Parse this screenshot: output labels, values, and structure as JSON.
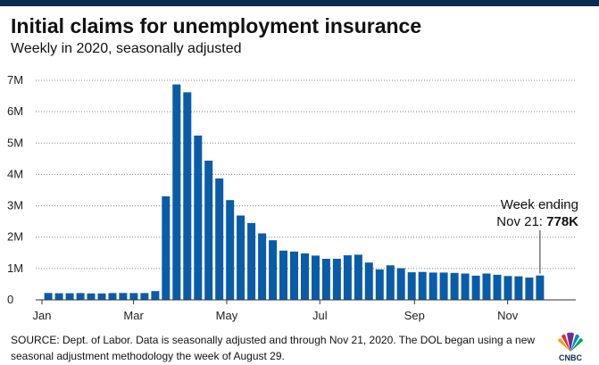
{
  "colors": {
    "bar": "#0a5ca8",
    "header_bar": "#0d2b52",
    "axis": "#333333"
  },
  "chart_data": {
    "type": "bar",
    "title": "Initial claims for unemployment insurance",
    "subtitle": "Weekly in 2020, seasonally adjusted",
    "ylim": [
      0,
      7000000
    ],
    "y_ticks": [
      {
        "value": 0,
        "label": "0"
      },
      {
        "value": 1000000,
        "label": "1M"
      },
      {
        "value": 2000000,
        "label": "2M"
      },
      {
        "value": 3000000,
        "label": "3M"
      },
      {
        "value": 4000000,
        "label": "4M"
      },
      {
        "value": 5000000,
        "label": "5M"
      },
      {
        "value": 6000000,
        "label": "6M"
      },
      {
        "value": 7000000,
        "label": "7M"
      }
    ],
    "x_ticks": [
      {
        "date": "2020-01-01",
        "label": "Jan"
      },
      {
        "date": "2020-03-01",
        "label": "Mar"
      },
      {
        "date": "2020-05-01",
        "label": "May"
      },
      {
        "date": "2020-07-01",
        "label": "Jul"
      },
      {
        "date": "2020-09-01",
        "label": "Sep"
      },
      {
        "date": "2020-11-01",
        "label": "Nov"
      }
    ],
    "grid": true,
    "series": [
      {
        "x": [
          "2020-01-04",
          "2020-01-11",
          "2020-01-18",
          "2020-01-25",
          "2020-02-01",
          "2020-02-08",
          "2020-02-15",
          "2020-02-22",
          "2020-02-29",
          "2020-03-07",
          "2020-03-14",
          "2020-03-21",
          "2020-03-28",
          "2020-04-04",
          "2020-04-11",
          "2020-04-18",
          "2020-04-25",
          "2020-05-02",
          "2020-05-09",
          "2020-05-16",
          "2020-05-23",
          "2020-05-30",
          "2020-06-06",
          "2020-06-13",
          "2020-06-20",
          "2020-06-27",
          "2020-07-04",
          "2020-07-11",
          "2020-07-18",
          "2020-07-25",
          "2020-08-01",
          "2020-08-08",
          "2020-08-15",
          "2020-08-22",
          "2020-08-29",
          "2020-09-05",
          "2020-09-12",
          "2020-09-19",
          "2020-09-26",
          "2020-10-03",
          "2020-10-10",
          "2020-10-17",
          "2020-10-24",
          "2020-10-31",
          "2020-11-07",
          "2020-11-14",
          "2020-11-21"
        ],
        "values": [
          220000,
          210000,
          210000,
          215000,
          205000,
          205000,
          215000,
          220000,
          215000,
          215000,
          280000,
          3300000,
          6870000,
          6620000,
          5240000,
          4440000,
          3870000,
          3180000,
          2690000,
          2450000,
          2120000,
          1900000,
          1570000,
          1540000,
          1480000,
          1410000,
          1310000,
          1310000,
          1420000,
          1440000,
          1190000,
          970000,
          1100000,
          1010000,
          880000,
          890000,
          870000,
          870000,
          860000,
          840000,
          770000,
          840000,
          800000,
          760000,
          750000,
          710000,
          778000
        ]
      }
    ],
    "annotation": {
      "line1": "Week ending",
      "line2_prefix": "Nov 21: ",
      "line2_value": "778K"
    }
  },
  "source": "SOURCE: Dept. of Labor. Data is seasonally adjusted and through Nov 21, 2020. The DOL began using a new seasonal adjustment methodology the week of August 29.",
  "logo": {
    "text": "CNBC",
    "icon": "peacock-logo-icon"
  }
}
